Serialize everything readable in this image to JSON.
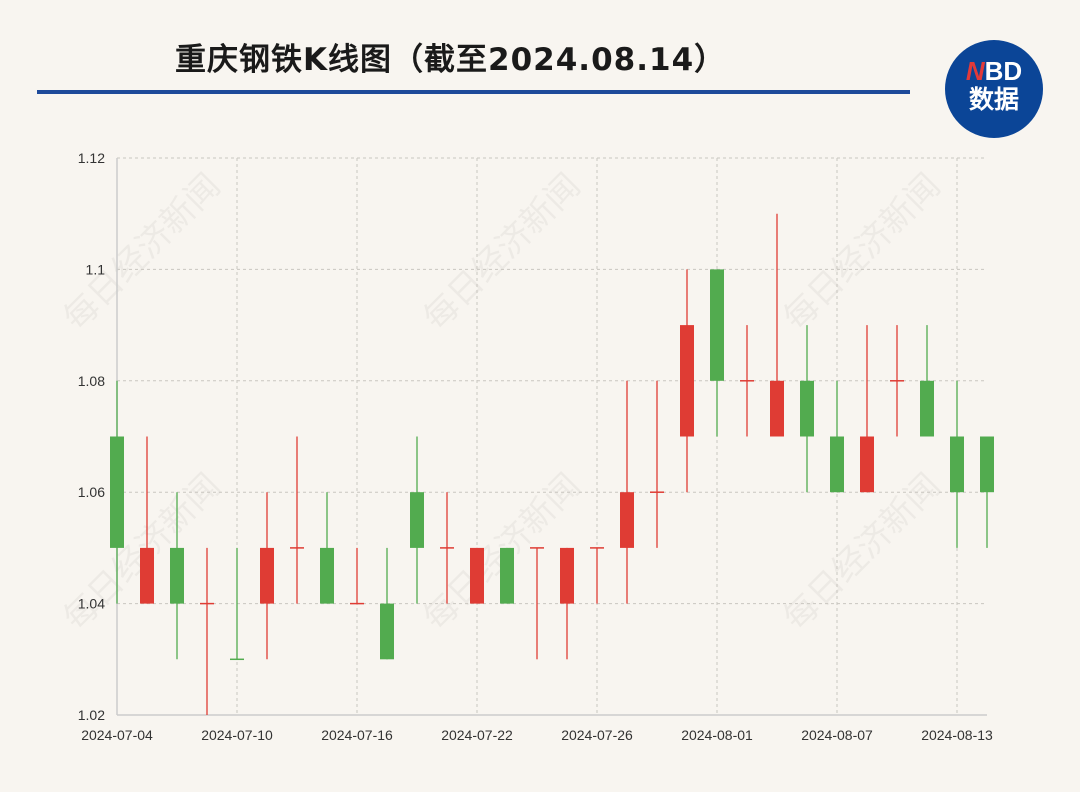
{
  "title": "重庆钢铁K线图（截至2024.08.14）",
  "logo": {
    "text_top_n": "N",
    "text_top_rest": "BD",
    "text_bottom": "数据",
    "color": "#0b4597"
  },
  "watermark": "每日经济新闻",
  "colors": {
    "up": "#df3c34",
    "down": "#52ab4f",
    "rule": "#1e4a9a"
  },
  "chart_data": {
    "type": "candlestick",
    "title": "重庆钢铁K线图（截至2024.08.14）",
    "ylim": [
      1.02,
      1.12
    ],
    "yticks": [
      "1.02",
      "1.04",
      "1.06",
      "1.08",
      "1.1",
      "1.12"
    ],
    "xtick_labels": [
      "2024-07-04",
      "2024-07-10",
      "2024-07-16",
      "2024-07-22",
      "2024-07-26",
      "2024-08-01",
      "2024-08-07",
      "2024-08-13"
    ],
    "grid": true,
    "candles": [
      {
        "date": "2024-07-04",
        "open": 1.07,
        "close": 1.05,
        "high": 1.08,
        "low": 1.04
      },
      {
        "date": "2024-07-05",
        "open": 1.04,
        "close": 1.05,
        "high": 1.07,
        "low": 1.04
      },
      {
        "date": "2024-07-08",
        "open": 1.05,
        "close": 1.04,
        "high": 1.06,
        "low": 1.03
      },
      {
        "date": "2024-07-09",
        "open": 1.04,
        "close": 1.04,
        "high": 1.05,
        "low": 1.02,
        "color": "up"
      },
      {
        "date": "2024-07-10",
        "open": 1.03,
        "close": 1.03,
        "high": 1.05,
        "low": 1.03,
        "color": "down"
      },
      {
        "date": "2024-07-11",
        "open": 1.04,
        "close": 1.05,
        "high": 1.06,
        "low": 1.03
      },
      {
        "date": "2024-07-12",
        "open": 1.05,
        "close": 1.05,
        "high": 1.07,
        "low": 1.04,
        "color": "up"
      },
      {
        "date": "2024-07-15",
        "open": 1.05,
        "close": 1.04,
        "high": 1.06,
        "low": 1.04
      },
      {
        "date": "2024-07-16",
        "open": 1.04,
        "close": 1.04,
        "high": 1.05,
        "low": 1.04,
        "color": "up"
      },
      {
        "date": "2024-07-17",
        "open": 1.04,
        "close": 1.03,
        "high": 1.05,
        "low": 1.03
      },
      {
        "date": "2024-07-18",
        "open": 1.06,
        "close": 1.05,
        "high": 1.07,
        "low": 1.04
      },
      {
        "date": "2024-07-19",
        "open": 1.05,
        "close": 1.05,
        "high": 1.06,
        "low": 1.04,
        "color": "up"
      },
      {
        "date": "2024-07-22",
        "open": 1.04,
        "close": 1.05,
        "high": 1.05,
        "low": 1.04
      },
      {
        "date": "2024-07-23",
        "open": 1.05,
        "close": 1.04,
        "high": 1.05,
        "low": 1.04
      },
      {
        "date": "2024-07-24",
        "open": 1.05,
        "close": 1.05,
        "high": 1.05,
        "low": 1.03,
        "color": "up"
      },
      {
        "date": "2024-07-25",
        "open": 1.04,
        "close": 1.05,
        "high": 1.05,
        "low": 1.03
      },
      {
        "date": "2024-07-26",
        "open": 1.05,
        "close": 1.05,
        "high": 1.05,
        "low": 1.04,
        "color": "up"
      },
      {
        "date": "2024-07-29",
        "open": 1.05,
        "close": 1.06,
        "high": 1.08,
        "low": 1.04
      },
      {
        "date": "2024-07-30",
        "open": 1.06,
        "close": 1.06,
        "high": 1.08,
        "low": 1.05,
        "color": "up"
      },
      {
        "date": "2024-07-31",
        "open": 1.07,
        "close": 1.09,
        "high": 1.1,
        "low": 1.06
      },
      {
        "date": "2024-08-01",
        "open": 1.1,
        "close": 1.08,
        "high": 1.1,
        "low": 1.07
      },
      {
        "date": "2024-08-02",
        "open": 1.08,
        "close": 1.08,
        "high": 1.09,
        "low": 1.07,
        "color": "up"
      },
      {
        "date": "2024-08-05",
        "open": 1.07,
        "close": 1.08,
        "high": 1.11,
        "low": 1.07
      },
      {
        "date": "2024-08-06",
        "open": 1.08,
        "close": 1.07,
        "high": 1.09,
        "low": 1.06
      },
      {
        "date": "2024-08-07",
        "open": 1.07,
        "close": 1.06,
        "high": 1.08,
        "low": 1.06
      },
      {
        "date": "2024-08-08",
        "open": 1.06,
        "close": 1.07,
        "high": 1.09,
        "low": 1.06
      },
      {
        "date": "2024-08-09",
        "open": 1.08,
        "close": 1.08,
        "high": 1.09,
        "low": 1.07,
        "color": "up"
      },
      {
        "date": "2024-08-12",
        "open": 1.08,
        "close": 1.07,
        "high": 1.09,
        "low": 1.07
      },
      {
        "date": "2024-08-13",
        "open": 1.07,
        "close": 1.06,
        "high": 1.08,
        "low": 1.05
      },
      {
        "date": "2024-08-14",
        "open": 1.07,
        "close": 1.06,
        "high": 1.07,
        "low": 1.05
      }
    ]
  }
}
